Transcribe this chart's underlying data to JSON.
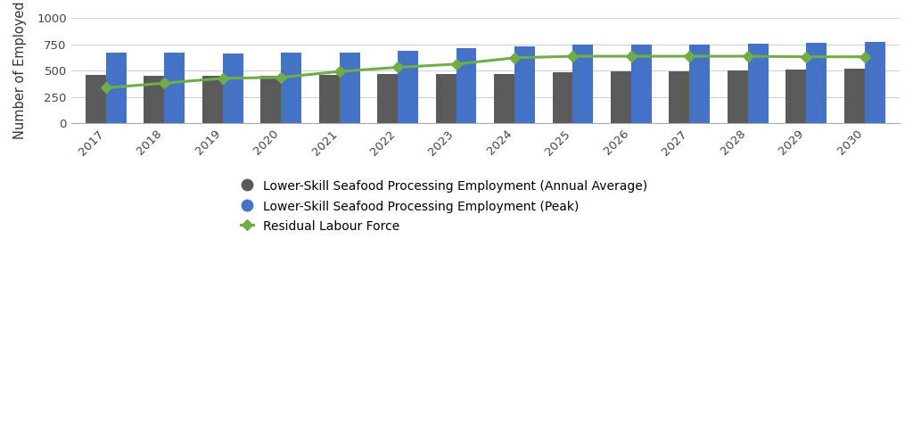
{
  "years": [
    2017,
    2018,
    2019,
    2020,
    2021,
    2022,
    2023,
    2024,
    2025,
    2026,
    2027,
    2028,
    2029,
    2030
  ],
  "annual_avg": [
    455,
    450,
    445,
    450,
    460,
    465,
    465,
    470,
    480,
    490,
    490,
    500,
    510,
    520
  ],
  "peak": [
    670,
    670,
    665,
    670,
    670,
    685,
    715,
    730,
    745,
    745,
    750,
    755,
    760,
    775
  ],
  "residual": [
    335,
    380,
    425,
    435,
    490,
    530,
    560,
    620,
    635,
    635,
    635,
    635,
    630,
    630
  ],
  "bar_width": 0.35,
  "annual_avg_color": "#5A5A5A",
  "peak_color": "#4472C4",
  "residual_color": "#70AD47",
  "ylabel": "Number of Employed",
  "ylim": [
    0,
    1000
  ],
  "yticks": [
    0,
    250,
    500,
    750,
    1000
  ],
  "bg_color": "#FFFFFF",
  "legend_labels": [
    "Lower-Skill Seafood Processing Employment (Annual Average)",
    "Lower-Skill Seafood Processing Employment (Peak)",
    "Residual Labour Force"
  ]
}
